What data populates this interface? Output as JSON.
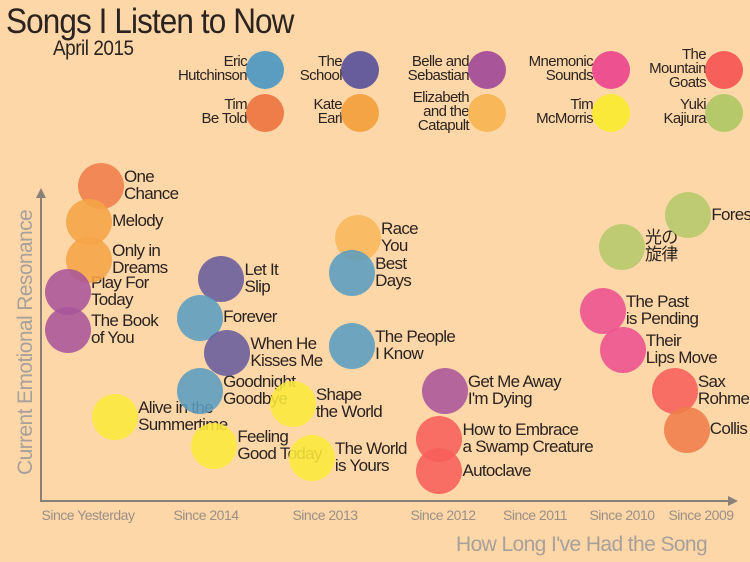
{
  "title": "Songs I Listen to Now",
  "subtitle": "April 2015",
  "legend": [
    {
      "artist": "Eric\nHutchinson",
      "color": "#5b9dc0"
    },
    {
      "artist": "The\nSchool",
      "color": "#675c9c"
    },
    {
      "artist": "Belle and\nSebastian",
      "color": "#a8559a"
    },
    {
      "artist": "Mnemonic\nSounds",
      "color": "#ee5190"
    },
    {
      "artist": "The\nMountain\nGoats",
      "color": "#f7605a"
    },
    {
      "artist": "Tim\nBe Told",
      "color": "#ef7d4a"
    },
    {
      "artist": "Kate\nEarl",
      "color": "#f5a445"
    },
    {
      "artist": "Elizabeth\nand the\nCatapult",
      "color": "#f8b85a"
    },
    {
      "artist": "Tim\nMcMorris",
      "color": "#fbe93a"
    },
    {
      "artist": "Yuki\nKajiura",
      "color": "#b6c96a"
    }
  ],
  "chart_data": {
    "type": "scatter",
    "xlabel": "How Long I've Had the Song",
    "ylabel": "Current Emotional Resonance",
    "x_categories": [
      "Since Yesterday",
      "Since 2014",
      "Since 2013",
      "Since 2012",
      "Since 2011",
      "Since 2010",
      "Since 2009"
    ],
    "ylim": [
      0,
      100
    ],
    "grid": false,
    "legend_position": "top",
    "points": [
      {
        "song": "One\nChance",
        "artist": "Tim Be Told",
        "x": 0.11,
        "y": 98
      },
      {
        "song": "Melody",
        "artist": "Kate Earl",
        "x": 0.01,
        "y": 87
      },
      {
        "song": "Only in\nDreams",
        "artist": "Kate Earl",
        "x": 0.01,
        "y": 75
      },
      {
        "song": "Play For\nToday",
        "artist": "Belle and Sebastian",
        "x": -0.17,
        "y": 65
      },
      {
        "song": "The Book\nof You",
        "artist": "Belle and Sebastian",
        "x": -0.17,
        "y": 53
      },
      {
        "song": "Let It\nSlip",
        "artist": "The School",
        "x": 1.13,
        "y": 69
      },
      {
        "song": "Forever",
        "artist": "Eric Hutchinson",
        "x": 0.95,
        "y": 57
      },
      {
        "song": "When He\nKisses Me",
        "artist": "The School",
        "x": 1.18,
        "y": 46
      },
      {
        "song": "Goodnight\nGoodbye",
        "artist": "Eric Hutchinson",
        "x": 0.95,
        "y": 34
      },
      {
        "song": "Alive in the\nSummertime",
        "artist": "Tim McMorris",
        "x": 0.23,
        "y": 26
      },
      {
        "song": "Feeling\nGood Today",
        "artist": "Tim McMorris",
        "x": 1.07,
        "y": 17
      },
      {
        "song": "Shape\nthe World",
        "artist": "Tim McMorris",
        "x": 1.73,
        "y": 30
      },
      {
        "song": "The World\nis Yours",
        "artist": "Tim McMorris",
        "x": 1.89,
        "y": 13
      },
      {
        "song": "Race\nYou",
        "artist": "Elizabeth and the Catapult",
        "x": 2.28,
        "y": 82
      },
      {
        "song": "Best\nDays",
        "artist": "Eric Hutchinson",
        "x": 2.23,
        "y": 71
      },
      {
        "song": "The People\nI Know",
        "artist": "Eric Hutchinson",
        "x": 2.23,
        "y": 48
      },
      {
        "song": "Get Me Away\nI'm Dying",
        "artist": "Belle and Sebastian",
        "x": 3.02,
        "y": 34
      },
      {
        "song": "How to Embrace\na Swamp Creature",
        "artist": "The Mountain Goats",
        "x": 2.97,
        "y": 19
      },
      {
        "song": "Autoclave",
        "artist": "The Mountain Goats",
        "x": 2.97,
        "y": 9
      },
      {
        "song": "The Past\nis Pending",
        "artist": "Mnemonic Sounds",
        "x": 4.78,
        "y": 59
      },
      {
        "song": "Their\nLips Move",
        "artist": "Mnemonic Sounds",
        "x": 5.01,
        "y": 47
      },
      {
        "song": "Sax\nRohme",
        "artist": "The Mountain Goats",
        "x": 5.67,
        "y": 34
      },
      {
        "song": "Collis",
        "artist": "Tim Be Told",
        "x": 5.82,
        "y": 22
      },
      {
        "song": "光の\n旋律",
        "artist": "Yuki Kajiura",
        "x": 5.0,
        "y": 79
      },
      {
        "song": "Fores",
        "artist": "Yuki Kajiura",
        "x": 5.84,
        "y": 89
      }
    ]
  }
}
